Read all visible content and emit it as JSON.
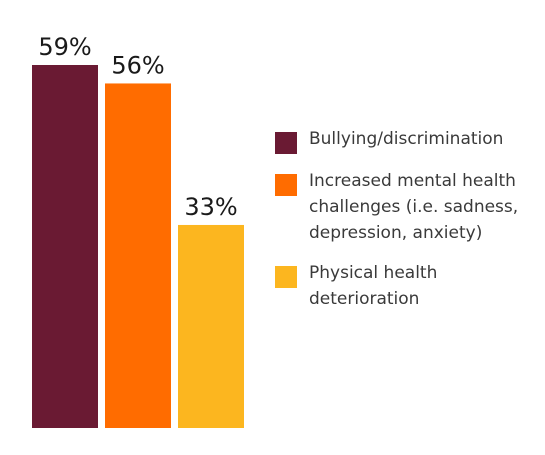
{
  "chart_data": {
    "type": "bar",
    "categories": [
      "Bullying/discrimination",
      "Increased mental health\nchallenges (i.e. sadness,\ndepression, anxiety)",
      "Physical health\ndeterioration"
    ],
    "values": [
      59,
      56,
      33
    ],
    "value_labels": [
      "59%",
      "56%",
      "33%"
    ],
    "colors": [
      "#6a1a33",
      "#ff6c00",
      "#fcb61f"
    ],
    "ylim": [
      0,
      59
    ],
    "grid": false,
    "legend_position": "right"
  }
}
